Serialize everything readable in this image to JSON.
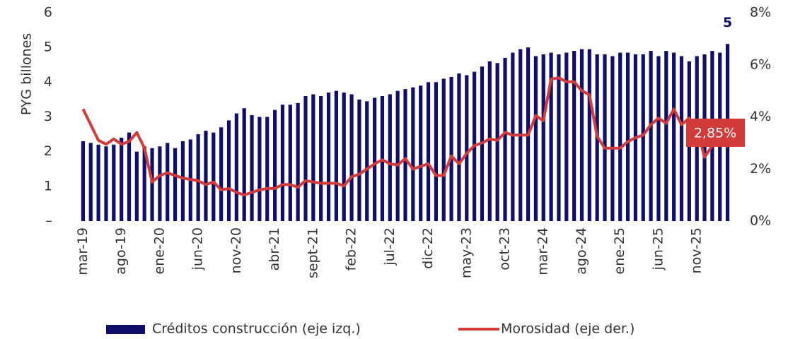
{
  "chart_data": {
    "type": "bar-line",
    "ylabel": "PYG billones",
    "categories": [
      "mar-19",
      null,
      null,
      null,
      null,
      "ago-19",
      null,
      null,
      null,
      null,
      "ene-20",
      null,
      null,
      null,
      null,
      "jun-20",
      null,
      null,
      null,
      null,
      "nov-20",
      null,
      null,
      null,
      null,
      "abr-21",
      null,
      null,
      null,
      null,
      "sept-21",
      null,
      null,
      null,
      null,
      "feb-22",
      null,
      null,
      null,
      null,
      "jul-22",
      null,
      null,
      null,
      null,
      "dic-22",
      null,
      null,
      null,
      null,
      "may-23",
      null,
      null,
      null,
      null,
      "oct-23",
      null,
      null,
      null,
      null,
      "mar-24",
      null,
      null,
      null,
      null,
      "ago-24",
      null,
      null,
      null,
      null,
      "ene-25",
      null,
      null,
      null,
      null,
      "jun-25",
      null,
      null,
      null,
      null,
      "nov-25",
      null,
      null,
      null,
      null
    ],
    "series": [
      {
        "name": "Créditos construcción (eje izq.)",
        "color": "#0f0f6b",
        "axis": "y",
        "values": [
          2.3,
          2.25,
          2.2,
          2.15,
          2.2,
          2.4,
          2.55,
          2.0,
          2.15,
          2.1,
          2.15,
          2.25,
          2.1,
          2.3,
          2.35,
          2.5,
          2.6,
          2.55,
          2.7,
          2.9,
          3.1,
          3.25,
          3.05,
          3.0,
          3.0,
          3.2,
          3.35,
          3.35,
          3.4,
          3.6,
          3.65,
          3.6,
          3.7,
          3.75,
          3.7,
          3.65,
          3.5,
          3.45,
          3.55,
          3.6,
          3.65,
          3.75,
          3.8,
          3.85,
          3.9,
          4.0,
          4.0,
          4.1,
          4.15,
          4.25,
          4.2,
          4.3,
          4.45,
          4.6,
          4.55,
          4.7,
          4.85,
          4.95,
          5.0,
          4.75,
          4.8,
          4.85,
          4.8,
          4.85,
          4.9,
          4.95,
          4.95,
          4.8,
          4.8,
          4.75,
          4.85,
          4.85,
          4.8,
          4.8,
          4.9,
          4.75,
          4.9,
          4.85,
          4.75,
          4.6,
          4.75,
          4.8,
          4.9,
          4.85,
          5.1
        ],
        "value_labels": [
          null,
          null,
          null,
          null,
          null,
          null,
          null,
          null,
          null,
          null,
          null,
          null,
          null,
          null,
          null,
          null,
          null,
          null,
          null,
          null,
          null,
          null,
          null,
          null,
          null,
          null,
          null,
          null,
          null,
          null,
          null,
          null,
          null,
          null,
          null,
          null,
          null,
          null,
          null,
          null,
          null,
          null,
          null,
          null,
          null,
          null,
          null,
          null,
          null,
          null,
          null,
          null,
          null,
          null,
          null,
          null,
          null,
          null,
          null,
          null,
          null,
          null,
          null,
          null,
          null,
          null,
          null,
          null,
          null,
          null,
          null,
          null,
          null,
          null,
          null,
          null,
          null,
          null,
          null,
          null,
          null,
          null,
          null,
          null,
          "5"
        ]
      },
      {
        "name": "Morosidad (eje der.)",
        "color": "#d33a3a",
        "axis": "y2",
        "values": [
          4.3,
          3.7,
          3.1,
          2.95,
          3.15,
          2.95,
          3.05,
          3.4,
          2.8,
          1.5,
          1.75,
          1.85,
          1.75,
          1.65,
          1.6,
          1.55,
          1.4,
          1.5,
          1.2,
          1.25,
          1.1,
          1.0,
          1.1,
          1.2,
          1.25,
          1.25,
          1.4,
          1.4,
          1.3,
          1.55,
          1.5,
          1.45,
          1.45,
          1.45,
          1.35,
          1.7,
          1.8,
          2.0,
          2.2,
          2.35,
          2.2,
          2.15,
          2.4,
          2.0,
          2.1,
          2.2,
          1.75,
          1.75,
          2.5,
          2.2,
          2.6,
          2.9,
          3.0,
          3.15,
          3.1,
          3.4,
          3.3,
          3.3,
          3.3,
          4.05,
          3.85,
          5.45,
          5.5,
          5.35,
          5.35,
          5.0,
          4.85,
          3.25,
          2.8,
          2.8,
          2.8,
          3.05,
          3.2,
          3.3,
          3.7,
          3.95,
          3.75,
          4.3,
          3.7,
          3.95,
          3.6,
          2.45,
          2.9,
          3.0,
          2.85
        ],
        "value_labels": [
          null,
          null,
          null,
          null,
          null,
          null,
          null,
          null,
          null,
          null,
          null,
          null,
          null,
          null,
          null,
          null,
          null,
          null,
          null,
          null,
          null,
          null,
          null,
          null,
          null,
          null,
          null,
          null,
          null,
          null,
          null,
          null,
          null,
          null,
          null,
          null,
          null,
          null,
          null,
          null,
          null,
          null,
          null,
          null,
          null,
          null,
          null,
          null,
          null,
          null,
          null,
          null,
          null,
          null,
          null,
          null,
          null,
          null,
          null,
          null,
          null,
          null,
          null,
          null,
          null,
          null,
          null,
          null,
          null,
          null,
          null,
          null,
          null,
          null,
          null,
          null,
          null,
          null,
          null,
          null,
          null,
          null,
          null,
          null,
          "2,85%"
        ]
      }
    ],
    "ylim": [
      0,
      6
    ],
    "yticks": [
      {
        "value": 0,
        "label": "–"
      },
      1,
      2,
      3,
      4,
      5,
      6
    ],
    "y2lim": [
      0,
      8
    ],
    "y2ticks": [
      {
        "value": 0,
        "label": "0%"
      },
      {
        "value": 2,
        "label": "2%"
      },
      {
        "value": 4,
        "label": "4%"
      },
      {
        "value": 6,
        "label": "6%"
      },
      {
        "value": 8,
        "label": "8%"
      }
    ],
    "grid": false,
    "legend": "bottom"
  }
}
